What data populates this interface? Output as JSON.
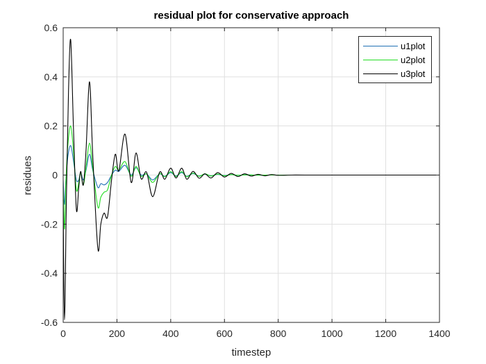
{
  "chart_data": {
    "type": "line",
    "title": "residual plot for conservative approach",
    "xlabel": "timestep",
    "ylabel": "residues",
    "xlim": [
      0,
      1400
    ],
    "ylim": [
      -0.6,
      0.6
    ],
    "xticks": [
      0,
      200,
      400,
      600,
      800,
      1000,
      1200,
      1400
    ],
    "yticks": [
      -0.6,
      -0.4,
      -0.2,
      0,
      0.2,
      0.4,
      0.6
    ],
    "xtick_labels": [
      "0",
      "200",
      "400",
      "600",
      "800",
      "1000",
      "1200",
      "1400"
    ],
    "ytick_labels": [
      "-0.6",
      "-0.4",
      "-0.2",
      "0",
      "0.2",
      "0.4",
      "0.6"
    ],
    "grid": true,
    "legend_position": "upper right",
    "series": [
      {
        "name": "u1plot",
        "color": "#1f6fb4",
        "x": [
          0,
          5,
          10,
          18,
          28,
          38,
          49,
          58,
          65,
          75,
          85,
          98,
          110,
          129,
          140,
          152,
          165,
          180,
          194,
          207,
          230,
          253,
          271,
          290,
          310,
          333,
          359,
          378,
          400,
          420,
          441,
          460,
          483,
          506,
          527,
          550,
          575,
          600,
          625,
          650,
          680,
          710,
          750,
          800,
          850,
          900,
          1000,
          1100,
          1200,
          1300,
          1400
        ],
        "values": [
          -0.02,
          -0.12,
          -0.02,
          0.08,
          0.12,
          0.06,
          -0.02,
          -0.02,
          0.01,
          -0.02,
          0.02,
          0.085,
          0.02,
          -0.05,
          -0.035,
          -0.04,
          -0.03,
          0.0,
          0.02,
          0.015,
          0.04,
          0.0,
          0.03,
          0.0,
          0.005,
          -0.02,
          0.005,
          -0.005,
          0.01,
          -0.004,
          0.01,
          -0.005,
          0.006,
          -0.004,
          0.004,
          -0.003,
          0.003,
          -0.002,
          0.002,
          -0.001,
          0.001,
          0.0,
          0.0,
          0.0,
          0.0,
          0.0,
          0.0,
          0.0,
          0.0,
          0.0,
          0.0
        ]
      },
      {
        "name": "u2plot",
        "color": "#22dd22",
        "x": [
          0,
          5,
          10,
          18,
          28,
          38,
          49,
          58,
          65,
          75,
          85,
          98,
          110,
          129,
          140,
          152,
          165,
          180,
          194,
          207,
          230,
          253,
          271,
          290,
          310,
          333,
          359,
          378,
          400,
          420,
          441,
          460,
          483,
          506,
          527,
          550,
          575,
          600,
          625,
          650,
          680,
          710,
          750,
          800,
          850,
          900,
          1000,
          1100,
          1200,
          1300,
          1400
        ],
        "values": [
          -0.05,
          -0.22,
          -0.03,
          0.13,
          0.2,
          0.1,
          -0.06,
          -0.03,
          0.01,
          -0.04,
          0.03,
          0.13,
          0.03,
          -0.13,
          -0.09,
          -0.07,
          -0.06,
          0.0,
          0.035,
          0.02,
          0.055,
          -0.005,
          0.035,
          -0.005,
          0.005,
          -0.03,
          0.006,
          -0.007,
          0.014,
          -0.006,
          0.014,
          -0.007,
          0.008,
          -0.005,
          0.005,
          -0.004,
          0.004,
          -0.003,
          0.002,
          -0.001,
          0.001,
          0.0,
          0.0,
          0.0,
          0.0,
          0.0,
          0.0,
          0.0,
          0.0,
          0.0,
          0.0
        ]
      },
      {
        "name": "u3plot",
        "color": "#000000",
        "x": [
          0,
          5,
          12,
          20,
          28,
          38,
          49,
          58,
          65,
          75,
          85,
          98,
          110,
          129,
          140,
          152,
          165,
          180,
          194,
          207,
          230,
          253,
          271,
          290,
          310,
          333,
          359,
          378,
          400,
          420,
          441,
          460,
          483,
          506,
          527,
          550,
          575,
          600,
          625,
          650,
          675,
          700,
          725,
          750,
          775,
          800,
          850,
          900,
          1000,
          1100,
          1200,
          1300,
          1400
        ],
        "values": [
          -0.1,
          -0.59,
          -0.1,
          0.35,
          0.55,
          0.2,
          -0.14,
          -0.05,
          0.015,
          -0.04,
          0.1,
          0.38,
          0.08,
          -0.3,
          -0.2,
          -0.155,
          -0.17,
          -0.02,
          0.085,
          0.017,
          0.167,
          -0.03,
          0.09,
          -0.015,
          0.012,
          -0.088,
          0.012,
          -0.017,
          0.028,
          -0.012,
          0.028,
          -0.017,
          0.015,
          -0.013,
          0.005,
          -0.012,
          0.01,
          -0.008,
          0.007,
          -0.006,
          0.005,
          -0.004,
          0.003,
          -0.003,
          0.002,
          -0.001,
          0.0,
          0.0,
          0.0,
          0.0,
          0.0,
          0.0,
          0.0
        ]
      }
    ]
  },
  "legend": {
    "items": [
      {
        "label": "u1plot",
        "color": "#1f6fb4"
      },
      {
        "label": "u2plot",
        "color": "#22dd22"
      },
      {
        "label": "u3plot",
        "color": "#000000"
      }
    ]
  }
}
